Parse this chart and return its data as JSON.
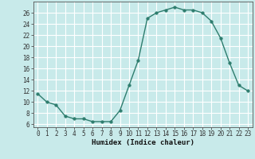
{
  "x": [
    0,
    1,
    2,
    3,
    4,
    5,
    6,
    7,
    8,
    9,
    10,
    11,
    12,
    13,
    14,
    15,
    16,
    17,
    18,
    19,
    20,
    21,
    22,
    23
  ],
  "y": [
    11.5,
    10.0,
    9.5,
    7.5,
    7.0,
    7.0,
    6.5,
    6.5,
    6.5,
    8.5,
    13.0,
    17.5,
    25.0,
    26.0,
    26.5,
    27.0,
    26.5,
    26.5,
    26.0,
    24.5,
    21.5,
    17.0,
    13.0,
    12.0
  ],
  "xlim": [
    -0.5,
    23.5
  ],
  "ylim": [
    5.5,
    28
  ],
  "yticks": [
    6,
    8,
    10,
    12,
    14,
    16,
    18,
    20,
    22,
    24,
    26
  ],
  "xticks": [
    0,
    1,
    2,
    3,
    4,
    5,
    6,
    7,
    8,
    9,
    10,
    11,
    12,
    13,
    14,
    15,
    16,
    17,
    18,
    19,
    20,
    21,
    22,
    23
  ],
  "xlabel": "Humidex (Indice chaleur)",
  "line_color": "#2e7d6e",
  "marker": "o",
  "marker_size": 2.5,
  "bg_color": "#c8eaea",
  "grid_color": "#ffffff",
  "tick_fontsize": 5.5,
  "xlabel_fontsize": 6.5
}
